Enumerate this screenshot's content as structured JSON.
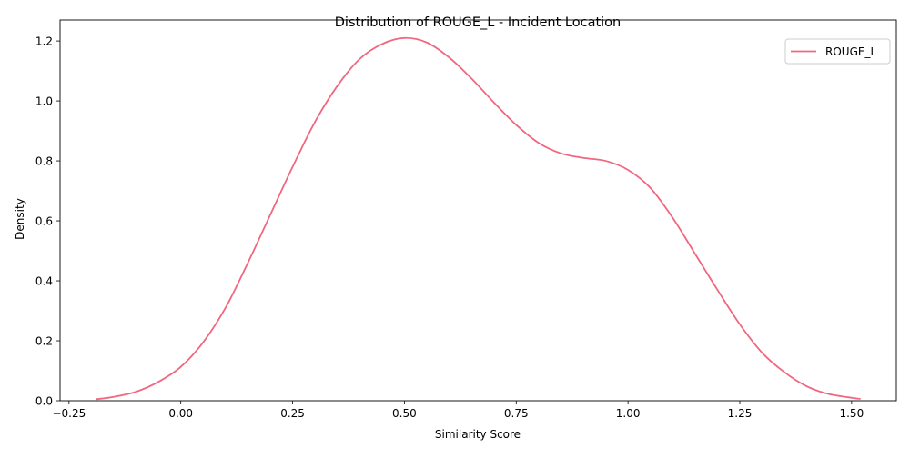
{
  "chart_data": {
    "type": "line",
    "title": "Distribution of ROUGE_L - Incident Location",
    "xlabel": "Similarity Score",
    "ylabel": "Density",
    "xlim": [
      -0.27,
      1.6
    ],
    "ylim": [
      0,
      1.27
    ],
    "x_ticks": [
      -0.25,
      0.0,
      0.25,
      0.5,
      0.75,
      1.0,
      1.25,
      1.5
    ],
    "x_tick_labels": [
      "−0.25",
      "0.00",
      "0.25",
      "0.50",
      "0.75",
      "1.00",
      "1.25",
      "1.50"
    ],
    "y_ticks": [
      0.0,
      0.2,
      0.4,
      0.6,
      0.8,
      1.0,
      1.2
    ],
    "y_tick_labels": [
      "0.0",
      "0.2",
      "0.4",
      "0.6",
      "0.8",
      "1.0",
      "1.2"
    ],
    "grid": false,
    "legend_position": "top-right",
    "series": [
      {
        "name": "ROUGE_L",
        "color": "#f0677f",
        "x": [
          -0.19,
          -0.15,
          -0.1,
          -0.05,
          0.0,
          0.05,
          0.1,
          0.15,
          0.2,
          0.25,
          0.3,
          0.35,
          0.4,
          0.45,
          0.5,
          0.55,
          0.6,
          0.65,
          0.7,
          0.75,
          0.8,
          0.85,
          0.9,
          0.95,
          1.0,
          1.05,
          1.1,
          1.15,
          1.2,
          1.25,
          1.3,
          1.35,
          1.4,
          1.45,
          1.52
        ],
        "y": [
          0.005,
          0.013,
          0.03,
          0.063,
          0.113,
          0.195,
          0.31,
          0.46,
          0.62,
          0.78,
          0.93,
          1.05,
          1.14,
          1.19,
          1.21,
          1.195,
          1.145,
          1.075,
          0.995,
          0.92,
          0.86,
          0.825,
          0.81,
          0.8,
          0.77,
          0.71,
          0.61,
          0.49,
          0.37,
          0.255,
          0.16,
          0.095,
          0.048,
          0.022,
          0.006
        ]
      }
    ]
  }
}
